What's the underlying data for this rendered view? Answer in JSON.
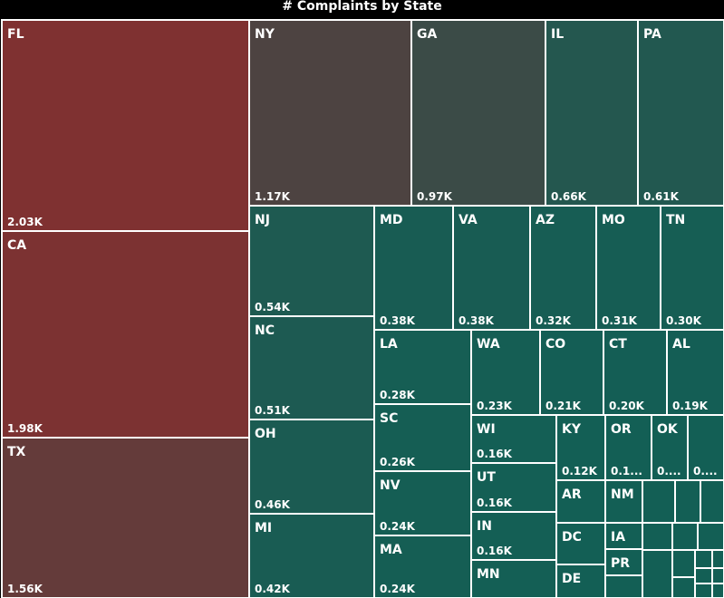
{
  "title": "# Complaints by State",
  "chart_data": {
    "type": "treemap",
    "title": "# Complaints by State",
    "colors": {
      "high": "#7f3131",
      "mid": "#4a4442",
      "low": "#135f55"
    },
    "items": [
      {
        "state": "FL",
        "value": 2030,
        "label": "2.03K"
      },
      {
        "state": "CA",
        "value": 1980,
        "label": "1.98K"
      },
      {
        "state": "TX",
        "value": 1560,
        "label": "1.56K"
      },
      {
        "state": "NY",
        "value": 1170,
        "label": "1.17K"
      },
      {
        "state": "GA",
        "value": 970,
        "label": "0.97K"
      },
      {
        "state": "IL",
        "value": 660,
        "label": "0.66K"
      },
      {
        "state": "PA",
        "value": 610,
        "label": "0.61K"
      },
      {
        "state": "NJ",
        "value": 540,
        "label": "0.54K"
      },
      {
        "state": "NC",
        "value": 510,
        "label": "0.51K"
      },
      {
        "state": "OH",
        "value": 460,
        "label": "0.46K"
      },
      {
        "state": "MI",
        "value": 420,
        "label": "0.42K"
      },
      {
        "state": "MD",
        "value": 380,
        "label": "0.38K"
      },
      {
        "state": "VA",
        "value": 380,
        "label": "0.38K"
      },
      {
        "state": "AZ",
        "value": 320,
        "label": "0.32K"
      },
      {
        "state": "MO",
        "value": 310,
        "label": "0.31K"
      },
      {
        "state": "TN",
        "value": 300,
        "label": "0.30K"
      },
      {
        "state": "LA",
        "value": 280,
        "label": "0.28K"
      },
      {
        "state": "SC",
        "value": 260,
        "label": "0.26K"
      },
      {
        "state": "NV",
        "value": 240,
        "label": "0.24K"
      },
      {
        "state": "MA",
        "value": 240,
        "label": "0.24K"
      },
      {
        "state": "WA",
        "value": 230,
        "label": "0.23K"
      },
      {
        "state": "CO",
        "value": 210,
        "label": "0.21K"
      },
      {
        "state": "CT",
        "value": 200,
        "label": "0.20K"
      },
      {
        "state": "AL",
        "value": 190,
        "label": "0.19K"
      },
      {
        "state": "WI",
        "value": 160,
        "label": "0.16K"
      },
      {
        "state": "UT",
        "value": 160,
        "label": "0.16K"
      },
      {
        "state": "IN",
        "value": 160,
        "label": "0.16K"
      },
      {
        "state": "MN",
        "value": 150,
        "label": ""
      },
      {
        "state": "KY",
        "value": 120,
        "label": "0.12K"
      },
      {
        "state": "OR",
        "value": 110,
        "label": "0.1..."
      },
      {
        "state": "OK",
        "value": 100,
        "label": "0...."
      },
      {
        "state": "",
        "value": 100,
        "label": "0...."
      },
      {
        "state": "AR",
        "value": 90,
        "label": ""
      },
      {
        "state": "NM",
        "value": 90,
        "label": ""
      },
      {
        "state": "DC",
        "value": 80,
        "label": ""
      },
      {
        "state": "IA",
        "value": 70,
        "label": ""
      },
      {
        "state": "PR",
        "value": 60,
        "label": ""
      },
      {
        "state": "DE",
        "value": 60,
        "label": ""
      }
    ]
  }
}
